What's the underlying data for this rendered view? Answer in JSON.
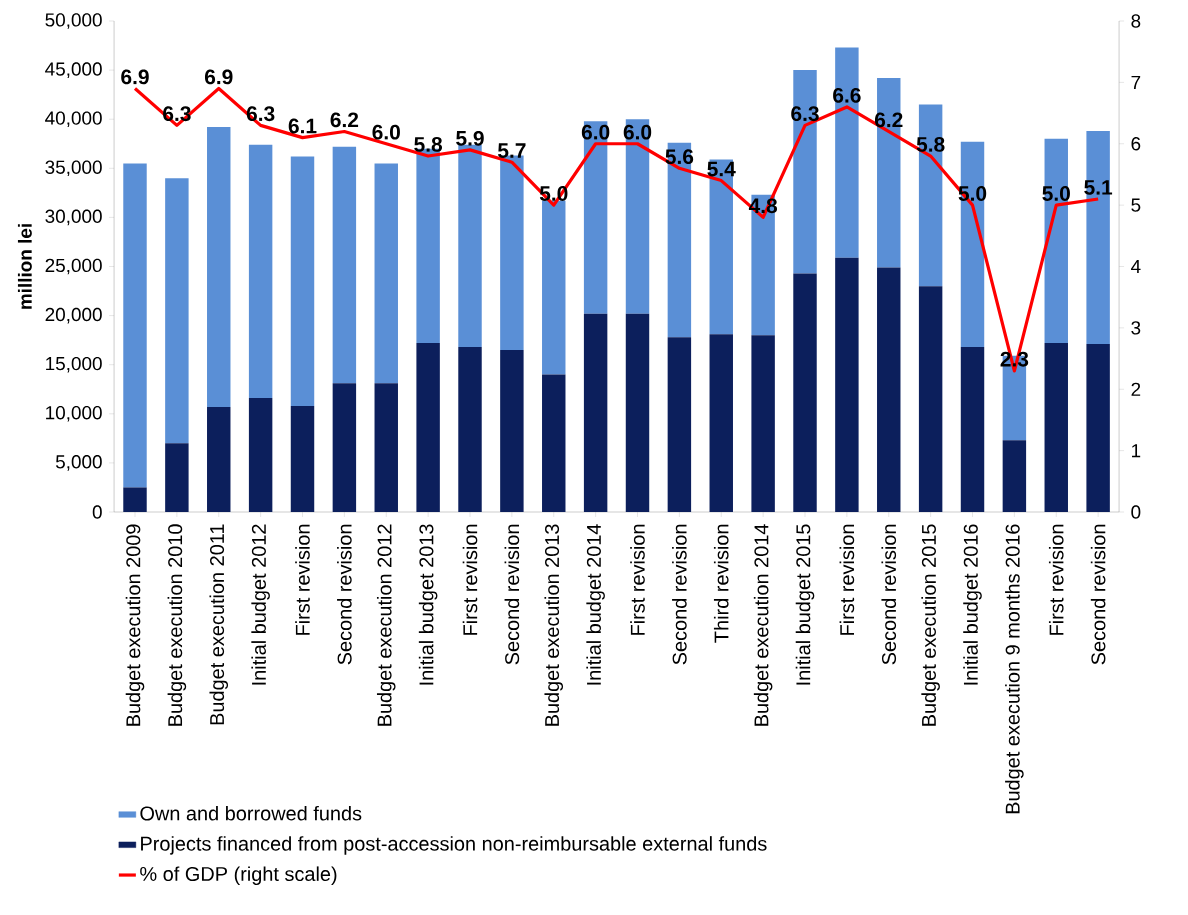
{
  "chart_data": {
    "type": "bar",
    "stacked": true,
    "categories": [
      "Budget execution 2009",
      "Budget execution 2010",
      "Budget execution 2011",
      "Initial budget 2012",
      "First revision",
      "Second revision",
      "Budget execution 2012",
      "Initial budget 2013",
      "First revision",
      "Second revision",
      "Budget execution 2013",
      "Initial budget 2014",
      "First revision",
      "Second revision",
      "Third revision",
      "Budget execution 2014",
      "Initial budget 2015",
      "First revision",
      "Second revision",
      "Budget execution 2015",
      "Initial budget 2016",
      "Budget execution 9 months 2016",
      "First revision",
      "Second revision"
    ],
    "series": [
      {
        "name": "Projects financed from post-accession non-reimbursable external funds",
        "color": "#0c1f5c",
        "values": [
          2500,
          7000,
          10700,
          11600,
          10800,
          13100,
          13100,
          17200,
          16800,
          16500,
          14000,
          20200,
          20200,
          17800,
          18100,
          18000,
          24300,
          25900,
          24900,
          23000,
          16800,
          7300,
          17200,
          17100
        ]
      },
      {
        "name": "Own and borrowed funds",
        "color": "#5a8fd6",
        "values": [
          33000,
          27000,
          28500,
          25800,
          25400,
          24100,
          22400,
          19800,
          20600,
          19800,
          17700,
          19600,
          19800,
          19800,
          17800,
          14300,
          20700,
          21400,
          19300,
          18500,
          20900,
          8600,
          20800,
          21700
        ]
      },
      {
        "name": "% of GDP (right scale)",
        "type": "line",
        "axis": "y2",
        "color": "#ff0000",
        "values": [
          6.9,
          6.3,
          6.9,
          6.3,
          6.1,
          6.2,
          6.0,
          5.8,
          5.9,
          5.7,
          5.0,
          6.0,
          6.0,
          5.6,
          5.4,
          4.8,
          6.3,
          6.6,
          6.2,
          5.8,
          5.0,
          2.3,
          5.0,
          5.1
        ],
        "value_labels": [
          "6.9",
          "6.3",
          "6.9",
          "6.3",
          "6.1",
          "6.2",
          "6.0",
          "5.8",
          "5.9",
          "5.7",
          "5.0",
          "6.0",
          "6.0",
          "5.6",
          "5.4",
          "4.8",
          "6.3",
          "6.6",
          "6.2",
          "5.8",
          "5.0",
          "2.3",
          "5.0",
          "5.1"
        ]
      }
    ],
    "ylabel": "million lei",
    "ylim": [
      0,
      50000
    ],
    "yticks": [
      {
        "value": 0,
        "label": "0"
      },
      {
        "value": 5000,
        "label": "5,000"
      },
      {
        "value": 10000,
        "label": "10,000"
      },
      {
        "value": 15000,
        "label": "15,000"
      },
      {
        "value": 20000,
        "label": "20,000"
      },
      {
        "value": 25000,
        "label": "25,000"
      },
      {
        "value": 30000,
        "label": "30,000"
      },
      {
        "value": 35000,
        "label": "35,000"
      },
      {
        "value": 40000,
        "label": "40,000"
      },
      {
        "value": 45000,
        "label": "45,000"
      },
      {
        "value": 50000,
        "label": "50,000"
      }
    ],
    "y2lim": [
      0,
      8
    ],
    "y2ticks": [
      0,
      1,
      2,
      3,
      4,
      5,
      6,
      7,
      8
    ],
    "legend": "bottom"
  }
}
